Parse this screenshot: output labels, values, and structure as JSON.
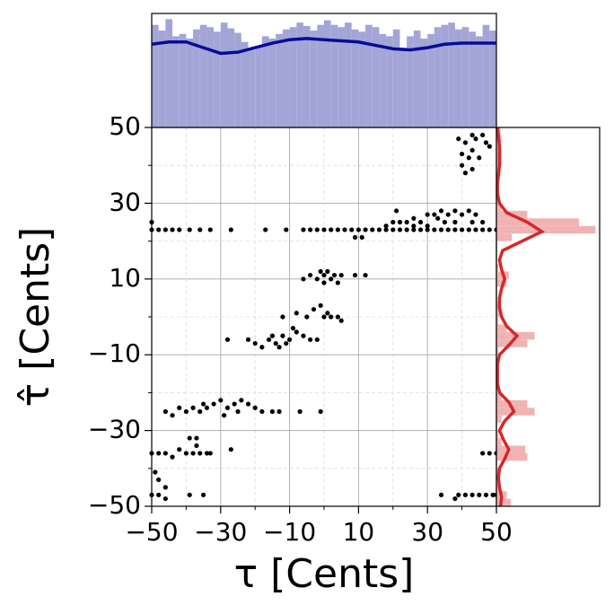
{
  "chart_data": [
    {
      "type": "scatter",
      "xlabel": "τ [Cents]",
      "ylabel": "τ̂ [Cents]",
      "color": "#000000",
      "xlim": [
        -50,
        50
      ],
      "ylim": [
        -50,
        50
      ],
      "xticks": [
        {
          "value": -50,
          "label": "−50"
        },
        {
          "value": -30,
          "label": "−30"
        },
        {
          "value": -10,
          "label": "−10"
        },
        10,
        30,
        50
      ],
      "yticks": [
        {
          "value": -50,
          "label": "−50"
        },
        {
          "value": -30,
          "label": "−30"
        },
        {
          "value": -10,
          "label": "−10"
        },
        10,
        30,
        50
      ],
      "minor_xticks": [
        -40,
        -20,
        0,
        20,
        40
      ],
      "minor_yticks": [
        -40,
        -20,
        0,
        20,
        40
      ],
      "grid": true,
      "x": [
        -50,
        -50,
        -48,
        -46,
        -44,
        -42,
        -39,
        -36,
        -33,
        -27,
        -17,
        -11,
        -6,
        -4,
        -2,
        0,
        2,
        4,
        6,
        8,
        10,
        12,
        14,
        16,
        18,
        20,
        22,
        24,
        26,
        28,
        30,
        32,
        34,
        36,
        38,
        40,
        42,
        44,
        46,
        48,
        50,
        9,
        11,
        21,
        18,
        20,
        22,
        24,
        26,
        28,
        30,
        32,
        33,
        34,
        36,
        38,
        40,
        42,
        44,
        43,
        46,
        35,
        38,
        26,
        30,
        39,
        41,
        43,
        44,
        46,
        47,
        40,
        42,
        43,
        45,
        40,
        41,
        43,
        48,
        -6,
        -4,
        -2,
        0,
        1,
        2,
        3,
        4,
        5,
        0,
        12,
        9,
        -1,
        -12,
        -8,
        -5,
        -3,
        -1,
        1,
        2,
        4,
        5,
        0,
        -28,
        -22,
        -20,
        -18,
        -16,
        -14,
        -12,
        -10,
        -8,
        -6,
        -4,
        -2,
        -15,
        -11,
        -13,
        -9,
        -46,
        -44,
        -42,
        -40,
        -38,
        -36,
        -34,
        -32,
        -30,
        -28,
        -26,
        -24,
        -22,
        -20,
        -18,
        -15,
        -13,
        -7,
        -1,
        -35,
        -25,
        -29,
        -50,
        -48,
        -46,
        -44,
        -42,
        -40,
        -38,
        -36,
        -34,
        -33,
        -39,
        -37,
        -37,
        -27,
        -49,
        -48,
        -46,
        -50,
        -48,
        -46,
        -39,
        -35,
        34,
        38,
        39,
        41,
        43,
        45,
        47,
        49,
        50,
        46,
        48,
        50
      ],
      "y": [
        25,
        23,
        23,
        23,
        23,
        23,
        23,
        23,
        23,
        23,
        23,
        23,
        23,
        23,
        23,
        23,
        23,
        23,
        23,
        23,
        23,
        23,
        23,
        23,
        23,
        23,
        23,
        23,
        23,
        23,
        23,
        23,
        23,
        23,
        23,
        23,
        23,
        23,
        23,
        23,
        23,
        21,
        21,
        28,
        24,
        25,
        25,
        25,
        24,
        25,
        27,
        27,
        26,
        28,
        27,
        28,
        27,
        28,
        27,
        25,
        25,
        25,
        25,
        26,
        24,
        47,
        46,
        48,
        47,
        48,
        46,
        43,
        42,
        44,
        42,
        40,
        38,
        39,
        45,
        10,
        11,
        10,
        11,
        12,
        10,
        11,
        9,
        11,
        9,
        11,
        11,
        12,
        0,
        1,
        0,
        2,
        3,
        1,
        0,
        0,
        -1,
        0,
        -6,
        -6,
        -7,
        -8,
        -6,
        -7,
        -5,
        -6,
        -4,
        -5,
        -6,
        -6,
        -5,
        -7,
        -8,
        -3,
        -25,
        -26,
        -24,
        -25,
        -24,
        -25,
        -24,
        -23,
        -22,
        -24,
        -23,
        -22,
        -23,
        -24,
        -25,
        -25,
        -25,
        -25,
        -25,
        -23,
        -25,
        -26,
        -36,
        -36,
        -36,
        -37,
        -35,
        -36,
        -36,
        -36,
        -36,
        -36,
        -32,
        -32,
        -34,
        -35,
        -41,
        -43,
        -45,
        -47,
        -47,
        -48,
        -47,
        -47,
        -47,
        -48,
        -47,
        -47,
        -47,
        -47,
        -47,
        -47,
        -47,
        -36,
        -36,
        -36
      ]
    },
    {
      "type": "histogram",
      "orientation": "vertical",
      "color": "#a3a5d6",
      "xlim": [
        -50,
        50
      ],
      "ylim": [
        0,
        1
      ],
      "bins": [
        -50,
        -48,
        -46,
        -44,
        -42,
        -40,
        -38,
        -36,
        -34,
        -32,
        -30,
        -28,
        -26,
        -24,
        -22,
        -20,
        -18,
        -16,
        -14,
        -12,
        -10,
        -8,
        -6,
        -4,
        -2,
        0,
        2,
        4,
        6,
        8,
        10,
        12,
        14,
        16,
        18,
        20,
        22,
        24,
        26,
        28,
        30,
        32,
        34,
        36,
        38,
        40,
        42,
        44,
        46,
        48,
        50
      ],
      "values": [
        0.9,
        0.85,
        0.95,
        0.8,
        0.82,
        0.78,
        0.86,
        0.9,
        0.88,
        0.84,
        0.92,
        0.87,
        0.83,
        0.75,
        0.68,
        0.7,
        0.8,
        0.78,
        0.82,
        0.86,
        0.88,
        0.92,
        0.89,
        0.85,
        0.9,
        0.94,
        0.9,
        0.88,
        0.92,
        0.86,
        0.84,
        0.9,
        0.88,
        0.82,
        0.8,
        0.86,
        0.7,
        0.8,
        0.85,
        0.78,
        0.82,
        0.88,
        0.9,
        0.92,
        0.86,
        0.88,
        0.84,
        0.8,
        0.9,
        0.85
      ],
      "kde": {
        "color": "#0a0a99",
        "x": [
          -50,
          -45,
          -40,
          -35,
          -30,
          -25,
          -20,
          -15,
          -10,
          -5,
          0,
          5,
          10,
          15,
          20,
          25,
          30,
          35,
          40,
          45,
          50
        ],
        "values": [
          0.73,
          0.75,
          0.75,
          0.7,
          0.65,
          0.66,
          0.7,
          0.74,
          0.77,
          0.78,
          0.77,
          0.76,
          0.75,
          0.72,
          0.69,
          0.68,
          0.7,
          0.73,
          0.74,
          0.74,
          0.74
        ]
      }
    },
    {
      "type": "histogram",
      "orientation": "horizontal",
      "color": "#f0b3b3",
      "ylim": [
        -50,
        50
      ],
      "xlim": [
        0,
        1
      ],
      "bins": [
        -50,
        -48,
        -46,
        -44,
        -42,
        -40,
        -38,
        -36,
        -34,
        -32,
        -30,
        -28,
        -26,
        -24,
        -22,
        -20,
        -18,
        -16,
        -14,
        -12,
        -10,
        -8,
        -6,
        -4,
        -2,
        0,
        2,
        4,
        6,
        8,
        10,
        12,
        14,
        16,
        18,
        20,
        22,
        24,
        26,
        28,
        30,
        32,
        34,
        36,
        38,
        40,
        42,
        44,
        46,
        48,
        50
      ],
      "values": [
        0.14,
        0.1,
        0.03,
        0.02,
        0.02,
        0,
        0.3,
        0.28,
        0.05,
        0.02,
        0,
        0.05,
        0.37,
        0.3,
        0.05,
        0,
        0,
        0,
        0,
        0,
        0.02,
        0.3,
        0.37,
        0.1,
        0.02,
        0.05,
        0.04,
        0,
        0,
        0.1,
        0.12,
        0.02,
        0,
        0,
        0,
        0.15,
        0.96,
        0.8,
        0.3,
        0.05,
        0.02,
        0,
        0,
        0,
        0.03,
        0.05,
        0.05,
        0.04,
        0.05,
        0.04
      ],
      "kde": {
        "color": "#d62728",
        "y": [
          -50,
          -47.5,
          -45,
          -42.5,
          -40,
          -37.5,
          -35,
          -32.5,
          -30,
          -27.5,
          -25,
          -22.5,
          -20,
          -17.5,
          -15,
          -12.5,
          -10,
          -7.5,
          -5,
          -2.5,
          0,
          2.5,
          5,
          7.5,
          10,
          12.5,
          15,
          17.5,
          20,
          22.5,
          25,
          27.5,
          30,
          32.5,
          35,
          37.5,
          40,
          42.5,
          45,
          47.5,
          50
        ],
        "values": [
          0.04,
          0.05,
          0.03,
          0.02,
          0.03,
          0.08,
          0.12,
          0.07,
          0.03,
          0.08,
          0.17,
          0.12,
          0.03,
          0.01,
          0.01,
          0.01,
          0.03,
          0.12,
          0.2,
          0.1,
          0.05,
          0.03,
          0.03,
          0.05,
          0.08,
          0.05,
          0.03,
          0.06,
          0.25,
          0.44,
          0.3,
          0.1,
          0.03,
          0.01,
          0.01,
          0.02,
          0.03,
          0.03,
          0.03,
          0.02,
          0.01
        ]
      }
    }
  ]
}
